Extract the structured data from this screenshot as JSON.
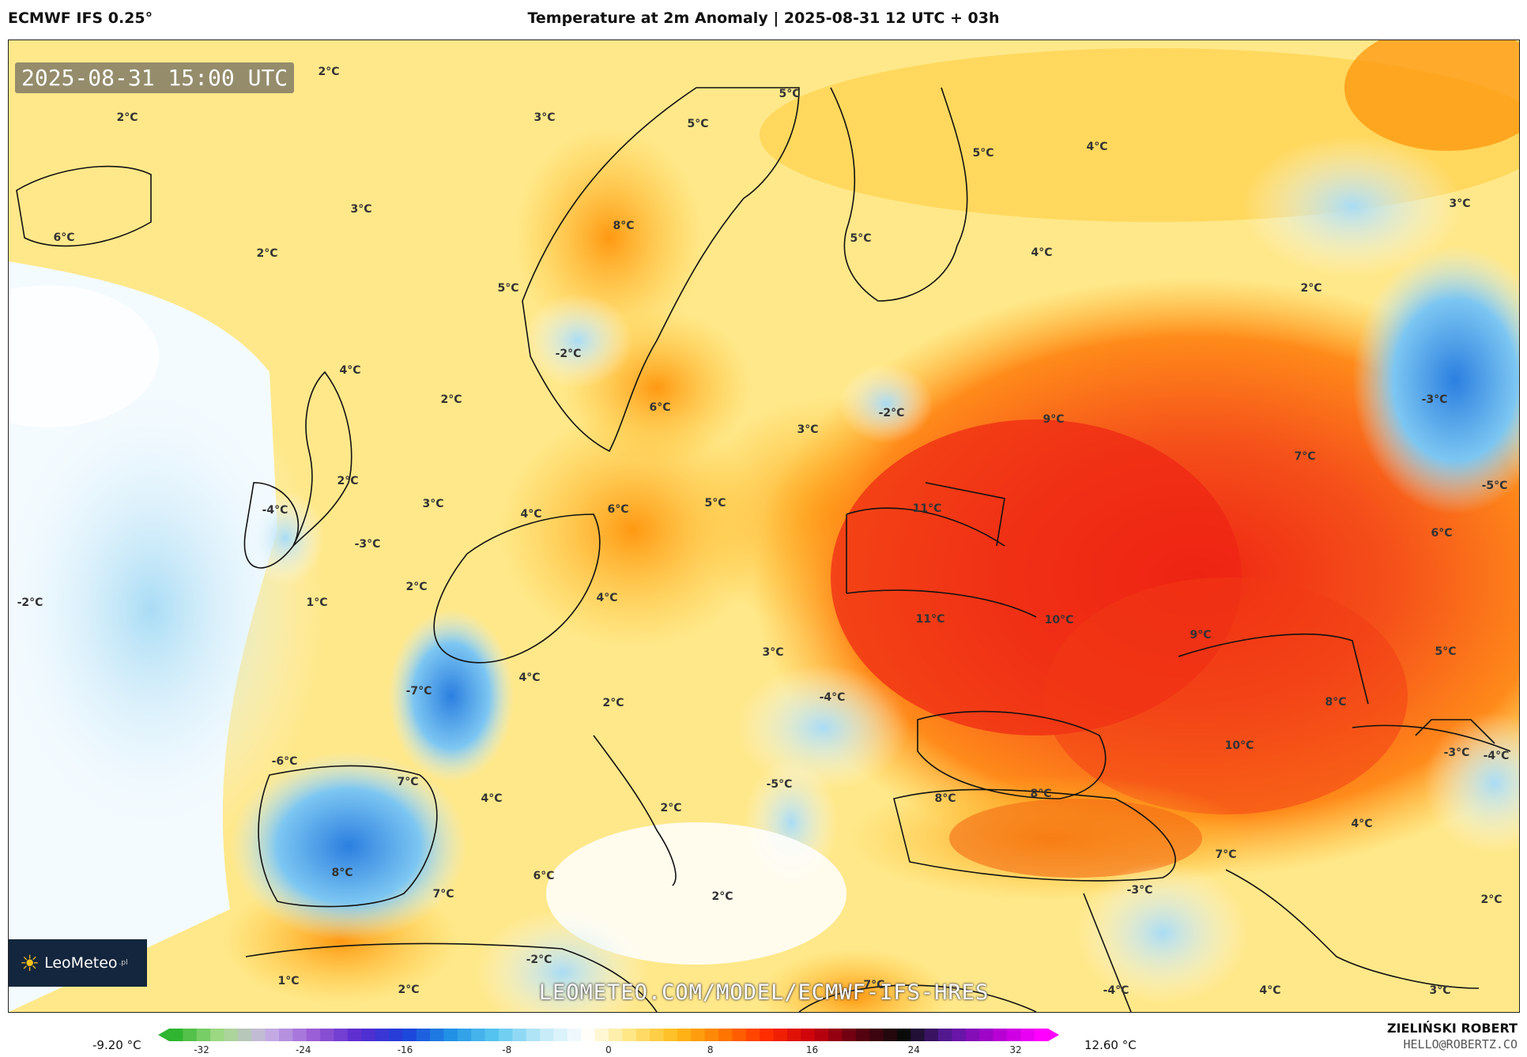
{
  "header": {
    "model": "ECMWF IFS 0.25°",
    "title": "Temperature at 2m Anomaly | 2025-08-31 12 UTC + 03h"
  },
  "map": {
    "datestamp": "2025-08-31 15:00 UTC",
    "labels": [
      {
        "id": "l1",
        "text": "2°C"
      },
      {
        "id": "l2",
        "text": "2°C"
      },
      {
        "id": "l3",
        "text": "3°C"
      },
      {
        "id": "l4",
        "text": "5°C"
      },
      {
        "id": "l5",
        "text": "5°C"
      },
      {
        "id": "l6",
        "text": "5°C"
      },
      {
        "id": "l7",
        "text": "4°C"
      },
      {
        "id": "l8",
        "text": "3°C"
      },
      {
        "id": "l9",
        "text": "6°C"
      },
      {
        "id": "l10",
        "text": "3°C"
      },
      {
        "id": "l11",
        "text": "2°C"
      },
      {
        "id": "l12",
        "text": "8°C"
      },
      {
        "id": "l13",
        "text": "5°C"
      },
      {
        "id": "l14",
        "text": "4°C"
      },
      {
        "id": "l15",
        "text": "5°C"
      },
      {
        "id": "l16",
        "text": "2°C"
      },
      {
        "id": "l17",
        "text": "-2°C"
      },
      {
        "id": "l18",
        "text": "4°C"
      },
      {
        "id": "l19",
        "text": "2°C"
      },
      {
        "id": "l20",
        "text": "6°C"
      },
      {
        "id": "l21",
        "text": "-2°C"
      },
      {
        "id": "l22",
        "text": "3°C"
      },
      {
        "id": "l23",
        "text": "9°C"
      },
      {
        "id": "l24",
        "text": "-3°C"
      },
      {
        "id": "l25",
        "text": "7°C"
      },
      {
        "id": "l26",
        "text": "2°C"
      },
      {
        "id": "l27",
        "text": "-4°C"
      },
      {
        "id": "l28",
        "text": "3°C"
      },
      {
        "id": "l29",
        "text": "-3°C"
      },
      {
        "id": "l30",
        "text": "4°C"
      },
      {
        "id": "l31",
        "text": "6°C"
      },
      {
        "id": "l32",
        "text": "5°C"
      },
      {
        "id": "l33",
        "text": "11°C"
      },
      {
        "id": "l34",
        "text": "-5°C"
      },
      {
        "id": "l35",
        "text": "6°C"
      },
      {
        "id": "l36",
        "text": "-2°C"
      },
      {
        "id": "l37",
        "text": "1°C"
      },
      {
        "id": "l38",
        "text": "2°C"
      },
      {
        "id": "l39",
        "text": "4°C"
      },
      {
        "id": "l40",
        "text": "11°C"
      },
      {
        "id": "l41",
        "text": "10°C"
      },
      {
        "id": "l42",
        "text": "9°C"
      },
      {
        "id": "l43",
        "text": "3°C"
      },
      {
        "id": "l44",
        "text": "5°C"
      },
      {
        "id": "l45",
        "text": "-7°C"
      },
      {
        "id": "l46",
        "text": "4°C"
      },
      {
        "id": "l47",
        "text": "2°C"
      },
      {
        "id": "l48",
        "text": "-4°C"
      },
      {
        "id": "l49",
        "text": "8°C"
      },
      {
        "id": "l50",
        "text": "-6°C"
      },
      {
        "id": "l51",
        "text": "7°C"
      },
      {
        "id": "l52",
        "text": "10°C"
      },
      {
        "id": "l53",
        "text": "-3°C"
      },
      {
        "id": "l54",
        "text": "-4°C"
      },
      {
        "id": "l55",
        "text": "4°C"
      },
      {
        "id": "l56",
        "text": "2°C"
      },
      {
        "id": "l57",
        "text": "-5°C"
      },
      {
        "id": "l58",
        "text": "8°C"
      },
      {
        "id": "l59",
        "text": "8°C"
      },
      {
        "id": "l60",
        "text": "4°C"
      },
      {
        "id": "l61",
        "text": "8°C"
      },
      {
        "id": "l62",
        "text": "6°C"
      },
      {
        "id": "l63",
        "text": "7°C"
      },
      {
        "id": "l64",
        "text": "2°C"
      },
      {
        "id": "l65",
        "text": "7°C"
      },
      {
        "id": "l66",
        "text": "-3°C"
      },
      {
        "id": "l67",
        "text": "2°C"
      },
      {
        "id": "l68",
        "text": "1°C"
      },
      {
        "id": "l69",
        "text": "-2°C"
      },
      {
        "id": "l70",
        "text": "2°C"
      },
      {
        "id": "l71",
        "text": "-4°C"
      },
      {
        "id": "l72",
        "text": "4°C"
      },
      {
        "id": "l73",
        "text": "3°C"
      },
      {
        "id": "l74",
        "text": "-7°C"
      }
    ],
    "logo": {
      "name": "LeoMeteo",
      "suffix": ".pl"
    },
    "watermark": "LEOMETEO.COM/MODEL/ECMWF-IFS-HRES"
  },
  "colorbar": {
    "min_label": "-9.20 °C",
    "max_label": "12.60 °C",
    "ticks": [
      "-32",
      "-24",
      "-16",
      "-8",
      "0",
      "8",
      "16",
      "24",
      "32"
    ],
    "stops": [
      "#2fb52f",
      "#a6dc8a",
      "#c8b3e6",
      "#9b5fd6",
      "#5b2bd0",
      "#1c3fd9",
      "#1f8fe6",
      "#59c7f0",
      "#bfe9f7",
      "#ffffff",
      "#ffe680",
      "#ffbb1a",
      "#ff7a00",
      "#ff2a00",
      "#c8000d",
      "#5a0011",
      "#0a0a0a",
      "#5a1aa0",
      "#b000d0",
      "#ff00ff"
    ]
  },
  "footer": {
    "author": "ZIELIŃSKI ROBERT",
    "email": "HELLO@ROBERTZ.CO"
  },
  "colors": {
    "anomaly_hot": "#f23a14",
    "anomaly_warm": "#ff9a1a",
    "anomaly_mild": "#ffd63a",
    "anomaly_cool": "#bfe4f6",
    "anomaly_cold": "#2f8fe4"
  }
}
